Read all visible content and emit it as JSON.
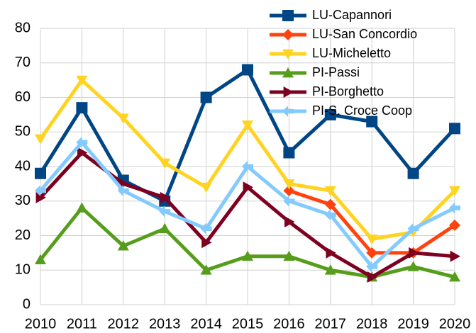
{
  "chart_data": {
    "type": "line",
    "categories": [
      "2010",
      "2011",
      "2012",
      "2013",
      "2014",
      "2015",
      "2016",
      "2017",
      "2018",
      "2019",
      "2020"
    ],
    "series": [
      {
        "name": "LU-Capannori",
        "color": "#004586",
        "marker": "square",
        "values": [
          38,
          57,
          36,
          30,
          60,
          68,
          44,
          55,
          53,
          38,
          51
        ]
      },
      {
        "name": "LU-San Concordio",
        "color": "#ff420e",
        "marker": "diamond",
        "values": [
          null,
          null,
          null,
          null,
          null,
          null,
          33,
          29,
          15,
          15,
          23
        ]
      },
      {
        "name": "LU-Micheletto",
        "color": "#ffd320",
        "marker": "triangle-down",
        "values": [
          48,
          65,
          54,
          41,
          34,
          52,
          35,
          33,
          19,
          21,
          33
        ]
      },
      {
        "name": "PI-Passi",
        "color": "#579d1c",
        "marker": "triangle-up",
        "values": [
          13,
          28,
          17,
          22,
          10,
          14,
          14,
          10,
          8,
          11,
          8
        ]
      },
      {
        "name": "PI-Borghetto",
        "color": "#7e0021",
        "marker": "triangle-right",
        "values": [
          31,
          44,
          35,
          31,
          18,
          34,
          24,
          15,
          8,
          15,
          14
        ]
      },
      {
        "name": "PI-S. Croce Coop",
        "color": "#83caff",
        "marker": "arrow-left",
        "values": [
          33,
          47,
          33,
          27,
          22,
          40,
          30,
          26,
          11,
          22,
          28
        ]
      }
    ],
    "ylim": [
      0,
      80
    ],
    "yticks": [
      0,
      10,
      20,
      30,
      40,
      50,
      60,
      70,
      80
    ],
    "grid": true,
    "legend": "top-right"
  }
}
